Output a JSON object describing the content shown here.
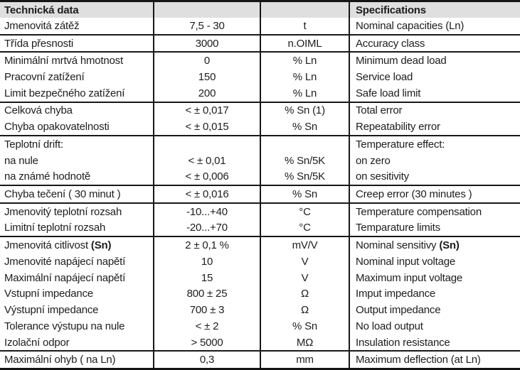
{
  "header": {
    "left_title": "Technická data",
    "right_title": "Specifications"
  },
  "colors": {
    "header_background": "#dfdfdf",
    "border": "#181818",
    "text": "#1d1d1d"
  },
  "rows": [
    {
      "czech": "Jmenovitá zátěž",
      "value": "7,5 - 30",
      "unit": "t",
      "english": "Nominal capacities (Ln)"
    },
    {
      "czech": "Třída přesnosti",
      "value": "3000",
      "unit": "n.OIML",
      "english": "Accuracy class"
    },
    {
      "czech": "Minimální mrtvá hmotnost",
      "value": "0",
      "unit": "% Ln",
      "english": "Minimum dead load"
    },
    {
      "czech": "Pracovní zatížení",
      "value": "150",
      "unit": "% Ln",
      "english": "Service load"
    },
    {
      "czech": "Limit bezpečného zatížení",
      "value": "200",
      "unit": "% Ln",
      "english": "Safe load limit"
    },
    {
      "czech": "Celková chyba",
      "value": "< ± 0,017",
      "unit": "% Sn (1)",
      "english": "Total error"
    },
    {
      "czech": "Chyba opakovatelnosti",
      "value": "< ± 0,015",
      "unit": "% Sn",
      "english": "Repeatability error"
    },
    {
      "czech": "Teplotní drift:",
      "value": "",
      "unit": "",
      "english": "Temperature effect:"
    },
    {
      "czech": "na nule",
      "value": "< ± 0,01",
      "unit": "% Sn/5K",
      "english": "on zero"
    },
    {
      "czech": "na známé hodnotě",
      "value": "< ± 0,006",
      "unit": "% Sn/5K",
      "english": "on sesitivity"
    },
    {
      "czech": "Chyba tečení ( 30 minut )",
      "value": "< ± 0,016",
      "unit": "% Sn",
      "english": "Creep error (30 minutes )"
    },
    {
      "czech": "Jmenovitý teplotní rozsah",
      "value": "-10...+40",
      "unit": "°C",
      "english": "Temperature compensation"
    },
    {
      "czech": "Limitní teplotní rozsah",
      "value": "-20...+70",
      "unit": "°C",
      "english": "Temparature limits"
    },
    {
      "czech": "Jmenovitá citlivost",
      "czech_bold": "(Sn)",
      "value": "2 ± 0,1 %",
      "unit": "mV/V",
      "english": "Nominal sensitivy",
      "english_bold": "(Sn)"
    },
    {
      "czech": "Jmenovité napájecí napětí",
      "value": "10",
      "unit": "V",
      "english": "Nominal input voltage"
    },
    {
      "czech": "Maximální napájecí napětí",
      "value": "15",
      "unit": "V",
      "english": "Maximum input voltage"
    },
    {
      "czech": "Vstupní impedance",
      "value": "800 ± 25",
      "unit": "Ω",
      "english": "Imput impedance"
    },
    {
      "czech": "Výstupní impedance",
      "value": "700 ± 3",
      "unit": "Ω",
      "english": "Output impedance"
    },
    {
      "czech": "Tolerance výstupu na nule",
      "value": "< ± 2",
      "unit": "% Sn",
      "english": "No load output"
    },
    {
      "czech": "Izolační odpor",
      "value": "> 5000",
      "unit": "MΩ",
      "english": "Insulation resistance"
    },
    {
      "czech": "Maximální ohyb ( na Ln)",
      "value": "0,3",
      "unit": "mm",
      "english": "Maximum deflection (at Ln)"
    }
  ]
}
